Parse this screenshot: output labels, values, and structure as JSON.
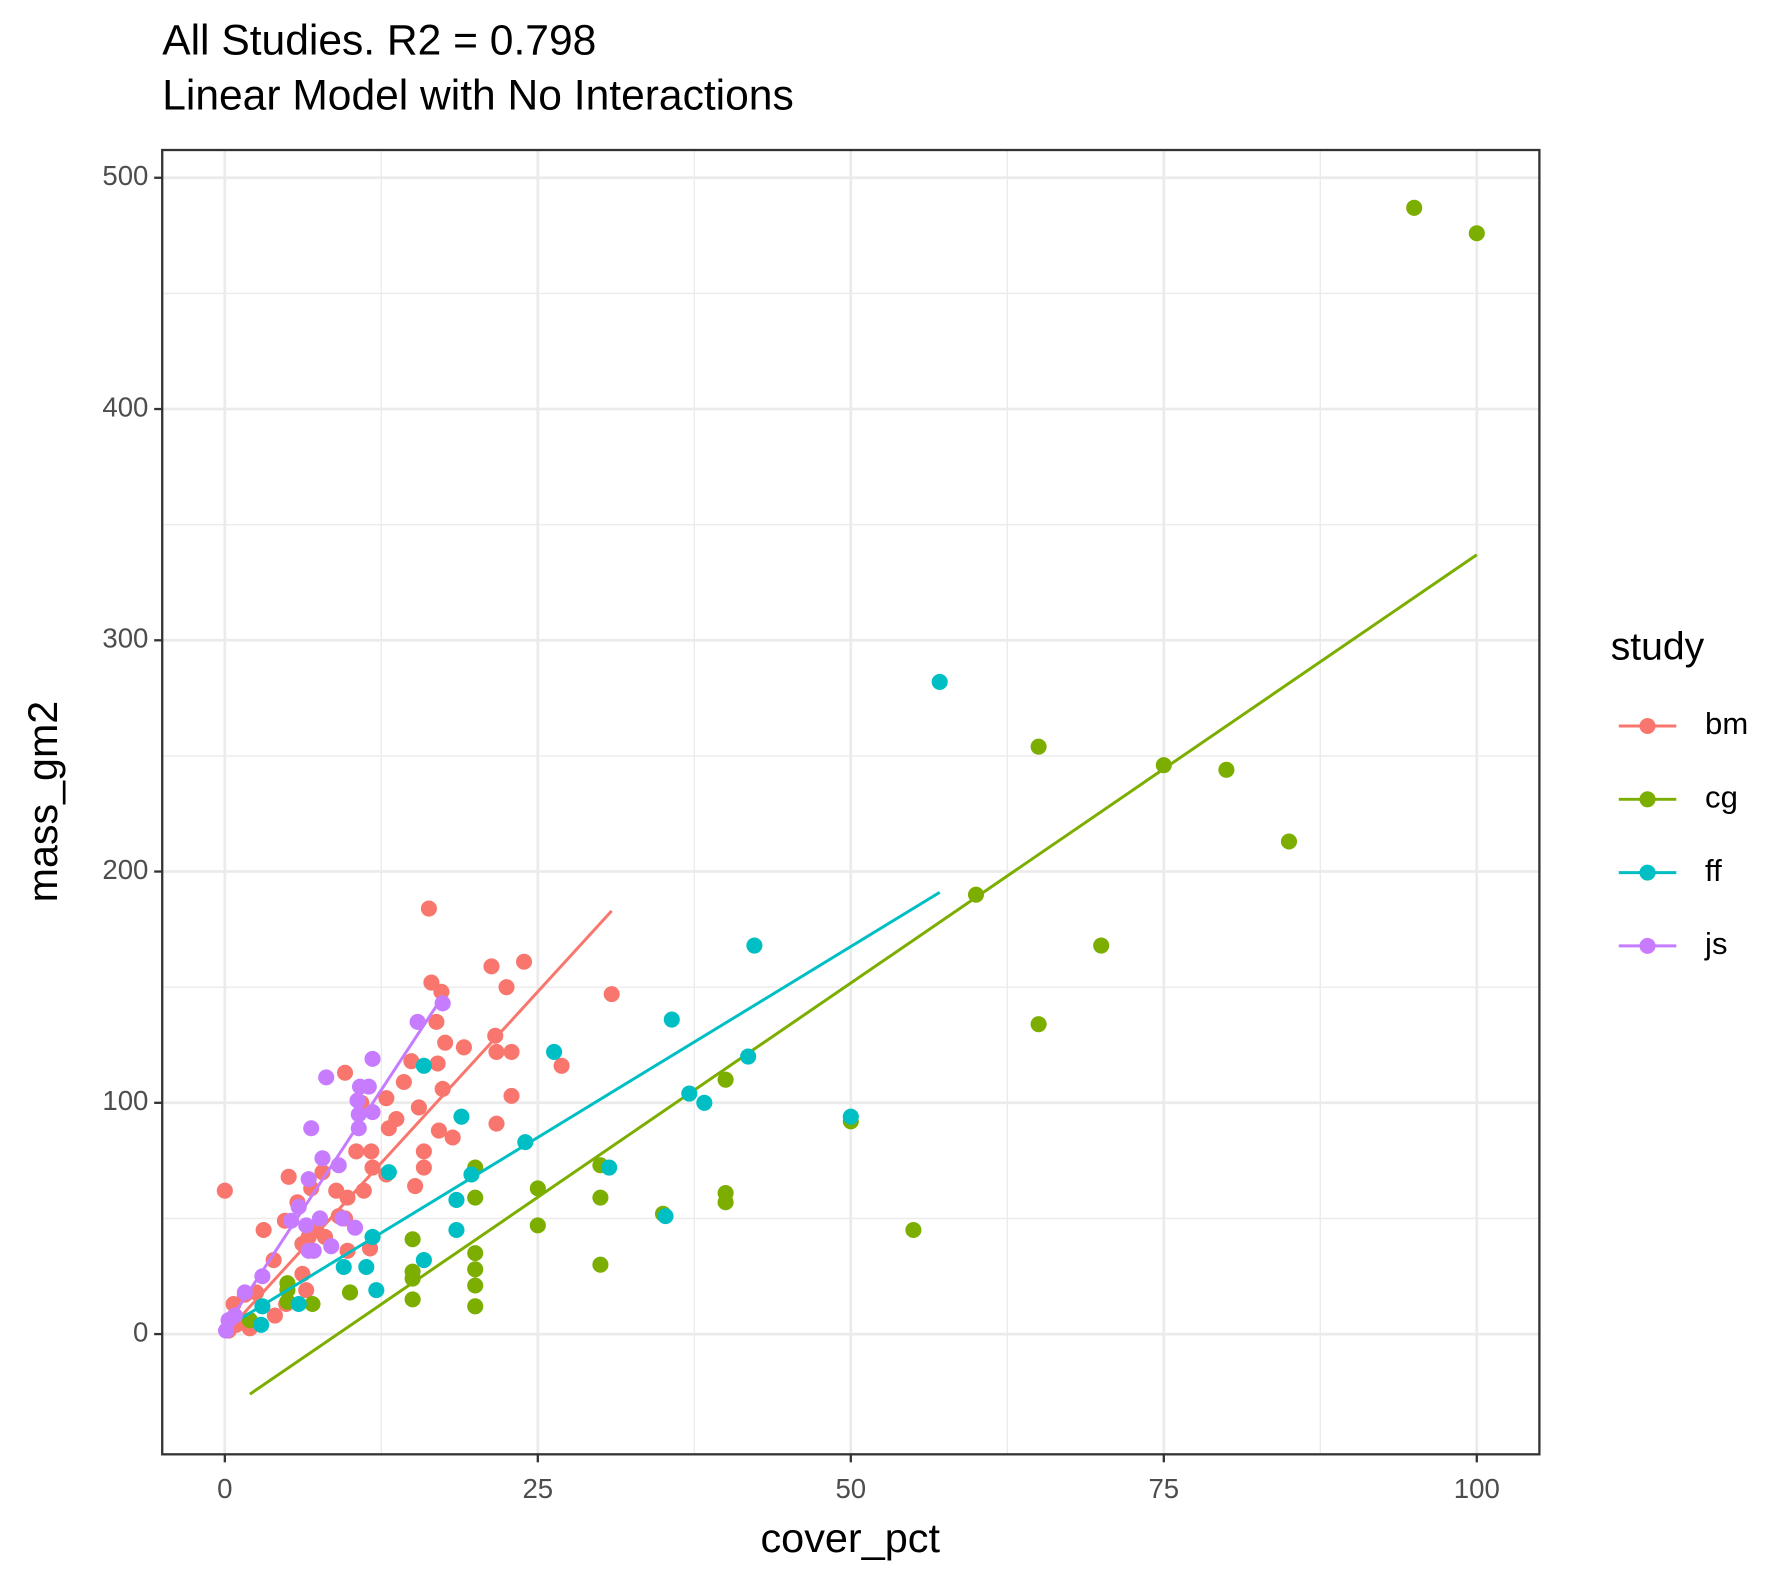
{
  "chart_data": {
    "type": "scatter",
    "title": "All Studies. R2 =  0.798",
    "subtitle": "Linear Model with No Interactions",
    "x_label": "cover_pct",
    "y_label": "mass_gm2",
    "legend_title": "study",
    "legend_position": "right",
    "grid": true,
    "xlim": [
      -5,
      105
    ],
    "ylim": [
      -52,
      512
    ],
    "xticks": [
      0,
      25,
      50,
      75,
      100
    ],
    "yticks": [
      0,
      100,
      200,
      300,
      400,
      500
    ],
    "series": [
      {
        "name": "bm",
        "color": "#F8766D",
        "x": [
          16.3,
          16.5,
          17.3,
          16.9,
          21.3,
          23.9,
          22.5,
          30.9,
          17.0,
          14.9,
          17.6,
          19.1,
          21.6,
          21.7,
          22.9,
          26.9,
          14.3,
          17.4,
          22.9,
          9.6,
          12.9,
          15.5,
          10.9,
          13.7,
          13.1,
          17.1,
          18.2,
          21.7,
          15.9,
          11.7,
          10.5,
          15.9,
          12.9,
          15.2,
          11.8,
          5.1,
          7.8,
          8.9,
          9.8,
          11.1,
          0,
          6.9,
          4.8,
          5.8,
          3.1,
          6.2,
          6.7,
          7.3,
          8.0,
          9.1,
          9.6,
          11.6,
          9.8,
          3.9,
          6.2,
          6.5,
          4.9,
          2.5,
          1.6,
          4.0,
          0.7,
          2.0,
          0.9,
          0.3
        ],
        "values": [
          184,
          152,
          148,
          135,
          159,
          161,
          150,
          147,
          117,
          118,
          126,
          124,
          129,
          122,
          122,
          116,
          109,
          106,
          103,
          113,
          102,
          98,
          100,
          93,
          89,
          88,
          85,
          91,
          79,
          79,
          79,
          72,
          69,
          64,
          72,
          68,
          70,
          62,
          59,
          62,
          62,
          63,
          49,
          57,
          45,
          39,
          42,
          45,
          42,
          51,
          50,
          37,
          36,
          32,
          26,
          19,
          13,
          18,
          17,
          8,
          13,
          2.5,
          4,
          1.5
        ],
        "fit": {
          "x": [
            0,
            30.9
          ],
          "values": [
            0,
            183
          ]
        }
      },
      {
        "name": "cg",
        "color": "#7CAE00",
        "x": [
          95,
          100,
          65,
          75,
          80,
          85,
          60,
          70,
          65,
          50,
          40,
          40,
          40,
          55,
          35,
          30,
          30,
          30,
          25,
          25,
          20,
          20,
          20,
          20,
          20,
          20,
          15,
          15,
          15,
          15,
          10,
          7,
          5,
          5,
          5,
          2
        ],
        "values": [
          487,
          476,
          254,
          246,
          244,
          213,
          190,
          168,
          134,
          92,
          110,
          61,
          57,
          45,
          52,
          73,
          59,
          30,
          63,
          47,
          72,
          59,
          35,
          28,
          21,
          12,
          41,
          27,
          24,
          15,
          18,
          13,
          22,
          14,
          19,
          6
        ],
        "fit": {
          "x": [
            2,
            100
          ],
          "values": [
            -26,
            337
          ]
        }
      },
      {
        "name": "ff",
        "color": "#00BFC4",
        "x": [
          57.1,
          42.3,
          35.7,
          41.8,
          37.1,
          38.3,
          50,
          26.3,
          24,
          30.7,
          35.2,
          18.9,
          19.7,
          18.5,
          18.5,
          13.1,
          15.9,
          15.9,
          11.8,
          12.1,
          11.3,
          9.5,
          2.9,
          5.9,
          3
        ],
        "values": [
          282,
          168,
          136,
          120,
          104,
          100,
          94,
          122,
          83,
          72,
          51,
          94,
          69,
          58,
          45,
          70,
          32,
          116,
          42,
          19,
          29,
          29,
          4,
          13,
          12
        ],
        "fit": {
          "x": [
            0,
            57.1
          ],
          "values": [
            2.5,
            191
          ]
        }
      },
      {
        "name": "js",
        "color": "#C77CFF",
        "x": [
          15.4,
          17.4,
          11.8,
          10.8,
          11.5,
          8.1,
          10.6,
          11.8,
          10.7,
          10.7,
          6.9,
          7.8,
          9.1,
          6.7,
          5.9,
          6.5,
          7.6,
          9.4,
          10.4,
          8.5,
          7.1,
          6.7,
          5.3,
          3.0,
          1.6,
          0.8,
          0.3,
          0.1
        ],
        "values": [
          135,
          143,
          119,
          107,
          107,
          111,
          101,
          96,
          95,
          89,
          89,
          76,
          73,
          67,
          55,
          47,
          50,
          50,
          46,
          38,
          36,
          36,
          49,
          25,
          18,
          8,
          6,
          1.5
        ],
        "fit": {
          "x": [
            0,
            17.4
          ],
          "values": [
            2.5,
            146
          ]
        }
      }
    ]
  }
}
